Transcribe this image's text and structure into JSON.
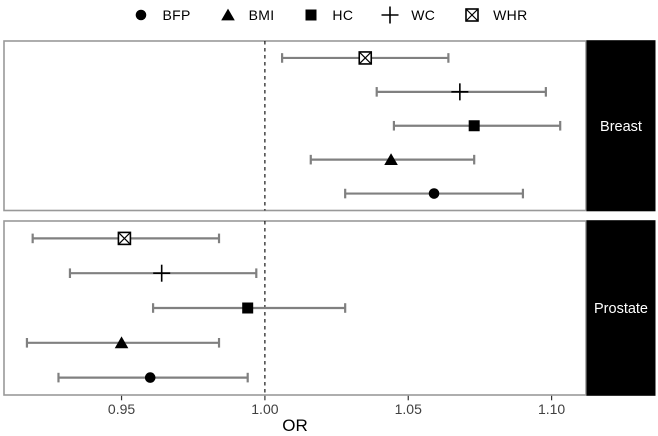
{
  "legend": {
    "items": [
      {
        "label": "BFP",
        "marker": "circle"
      },
      {
        "label": "BMI",
        "marker": "triangle"
      },
      {
        "label": "HC",
        "marker": "square"
      },
      {
        "label": "WC",
        "marker": "plus"
      },
      {
        "label": "WHR",
        "marker": "square-x"
      }
    ]
  },
  "chart_data": {
    "type": "forest",
    "xlabel": "OR",
    "xlim": [
      0.909,
      1.112
    ],
    "xticks": [
      0.95,
      1.0,
      1.05,
      1.1
    ],
    "xtick_labels": [
      "0.95",
      "1.00",
      "1.05",
      "1.10"
    ],
    "reference_x": 1.0,
    "legend_position": "top",
    "grid": false,
    "panels": [
      {
        "label": "Breast",
        "rows": [
          {
            "measure": "WHR",
            "marker": "square-x",
            "or": 1.035,
            "lo": 1.006,
            "hi": 1.064
          },
          {
            "measure": "WC",
            "marker": "plus",
            "or": 1.068,
            "lo": 1.039,
            "hi": 1.098
          },
          {
            "measure": "HC",
            "marker": "square",
            "or": 1.073,
            "lo": 1.045,
            "hi": 1.103
          },
          {
            "measure": "BMI",
            "marker": "triangle",
            "or": 1.044,
            "lo": 1.016,
            "hi": 1.073
          },
          {
            "measure": "BFP",
            "marker": "circle",
            "or": 1.059,
            "lo": 1.028,
            "hi": 1.09
          }
        ]
      },
      {
        "label": "Prostate",
        "rows": [
          {
            "measure": "WHR",
            "marker": "square-x",
            "or": 0.951,
            "lo": 0.919,
            "hi": 0.984
          },
          {
            "measure": "WC",
            "marker": "plus",
            "or": 0.964,
            "lo": 0.932,
            "hi": 0.997
          },
          {
            "measure": "HC",
            "marker": "square",
            "or": 0.994,
            "lo": 0.961,
            "hi": 1.028
          },
          {
            "measure": "BMI",
            "marker": "triangle",
            "or": 0.95,
            "lo": 0.917,
            "hi": 0.984
          },
          {
            "measure": "BFP",
            "marker": "circle",
            "or": 0.96,
            "lo": 0.928,
            "hi": 0.994
          }
        ]
      }
    ]
  },
  "colors": {
    "error_bar": "#808080",
    "marker": "#000000",
    "panel_border": "#999999",
    "reference_line": "#000000",
    "strip_bg": "#000000",
    "strip_text": "#ffffff",
    "tick_text": "#404040",
    "axis_line": "#333333"
  }
}
